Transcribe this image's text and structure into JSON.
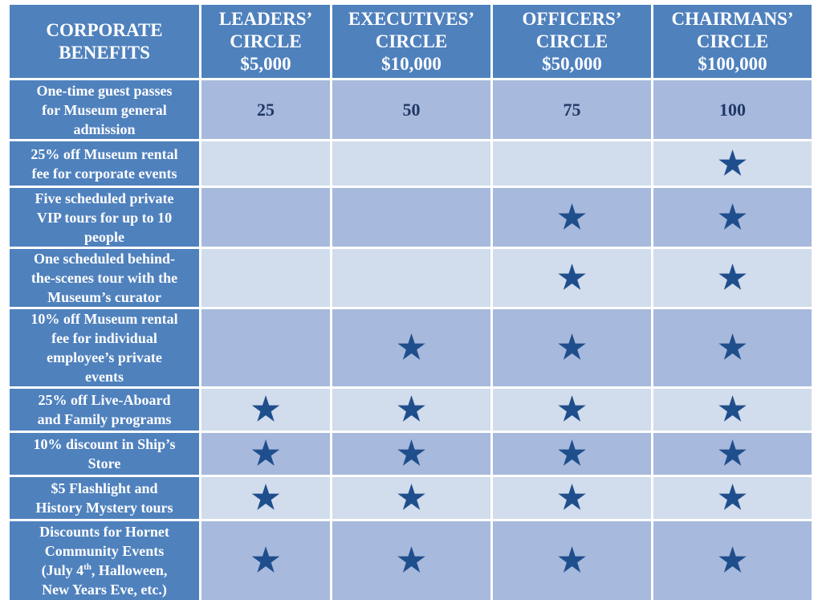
{
  "header": {
    "corner": "CORPORATE\nBENEFITS",
    "tiers": [
      "LEADERS’\nCIRCLE\n$5,000",
      "EXECUTIVES’\nCIRCLE\n$10,000",
      "OFFICERS’\nCIRCLE\n$50,000",
      "CHAIRMANS’\nCIRCLE\n$100,000"
    ]
  },
  "rows": [
    {
      "label": "One-time guest passes\nfor Museum general\nadmission",
      "values": [
        "25",
        "50",
        "75",
        "100"
      ]
    },
    {
      "label": "25% off Museum rental\nfee for corporate events",
      "values": [
        "",
        "",
        "",
        "★"
      ]
    },
    {
      "label": "Five scheduled private\nVIP tours for up to 10\npeople",
      "values": [
        "",
        "",
        "★",
        "★"
      ]
    },
    {
      "label": "One scheduled behind-\nthe-scenes tour with the\nMuseum’s curator",
      "values": [
        "",
        "",
        "★",
        "★"
      ]
    },
    {
      "label": "10% off Museum rental\nfee for individual\nemployee’s private\nevents",
      "values": [
        "",
        "★",
        "★",
        "★"
      ]
    },
    {
      "label": "25% off Live-Aboard\nand Family programs",
      "values": [
        "★",
        "★",
        "★",
        "★"
      ]
    },
    {
      "label": "10% discount in Ship’s\nStore",
      "values": [
        "★",
        "★",
        "★",
        "★"
      ]
    },
    {
      "label": "$5 Flashlight and\nHistory Mystery tours",
      "values": [
        "★",
        "★",
        "★",
        "★"
      ]
    },
    {
      "label_parts": [
        "Discounts for Hornet\nCommunity Events\n(July 4",
        "th",
        ", Halloween,\nNew Years Eve, etc.)"
      ],
      "values": [
        "★",
        "★",
        "★",
        "★"
      ]
    }
  ],
  "colors": {
    "header_bg": "#4f81bd",
    "row_dark": "#a7b9dc",
    "row_light": "#d1dcec",
    "star": "#1f4e8c",
    "value_text": "#1f3864"
  },
  "icons": {
    "included": "star-icon"
  }
}
